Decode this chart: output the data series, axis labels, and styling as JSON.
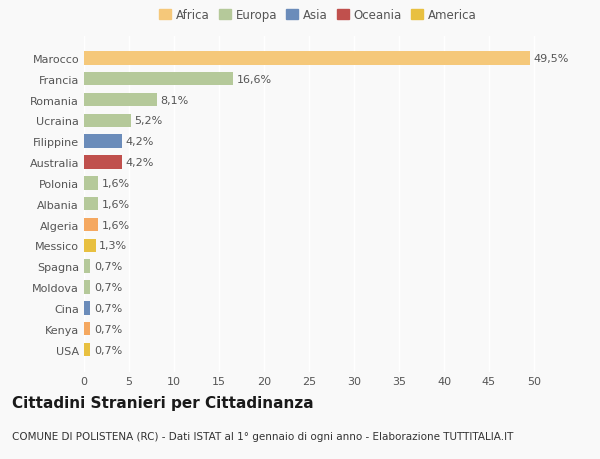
{
  "categories": [
    "USA",
    "Kenya",
    "Cina",
    "Moldova",
    "Spagna",
    "Messico",
    "Algeria",
    "Albania",
    "Polonia",
    "Australia",
    "Filippine",
    "Ucraina",
    "Romania",
    "Francia",
    "Marocco"
  ],
  "values": [
    0.7,
    0.7,
    0.7,
    0.7,
    0.7,
    1.3,
    1.6,
    1.6,
    1.6,
    4.2,
    4.2,
    5.2,
    8.1,
    16.6,
    49.5
  ],
  "bar_color_map": {
    "Marocco": "#f5c87a",
    "Francia": "#b5c99a",
    "Romania": "#b5c99a",
    "Ucraina": "#b5c99a",
    "Filippine": "#6b8cba",
    "Australia": "#c0504d",
    "Polonia": "#b5c99a",
    "Albania": "#b5c99a",
    "Algeria": "#f5a860",
    "Messico": "#e8c040",
    "Spagna": "#b5c99a",
    "Moldova": "#b5c99a",
    "Cina": "#6b8cba",
    "Kenya": "#f5a860",
    "USA": "#e8c040"
  },
  "legend_items": [
    {
      "label": "Africa",
      "color": "#f5c87a"
    },
    {
      "label": "Europa",
      "color": "#b5c99a"
    },
    {
      "label": "Asia",
      "color": "#6b8cba"
    },
    {
      "label": "Oceania",
      "color": "#c0504d"
    },
    {
      "label": "America",
      "color": "#e8c040"
    }
  ],
  "xlim": [
    0,
    52
  ],
  "xticks": [
    0,
    5,
    10,
    15,
    20,
    25,
    30,
    35,
    40,
    45,
    50
  ],
  "title": "Cittadini Stranieri per Cittadinanza",
  "subtitle": "COMUNE DI POLISTENA (RC) - Dati ISTAT al 1° gennaio di ogni anno - Elaborazione TUTTITALIA.IT",
  "bg_color": "#f9f9f9",
  "grid_color": "#ffffff",
  "label_color": "#555555",
  "bar_label_fontsize": 8,
  "tick_fontsize": 8,
  "title_fontsize": 11,
  "subtitle_fontsize": 7.5
}
